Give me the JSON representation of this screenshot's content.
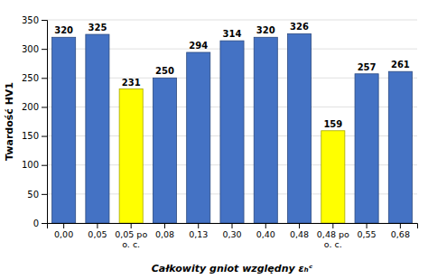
{
  "chart_data": {
    "type": "bar",
    "categories": [
      "0,00",
      "0,05",
      "0,05 po\no. c.",
      "0,08",
      "0,13",
      "0,30",
      "0,40",
      "0,48",
      "0,48 po\no. c.",
      "0,55",
      "0,68"
    ],
    "values": [
      320,
      325,
      231,
      250,
      294,
      314,
      320,
      326,
      159,
      257,
      261
    ],
    "colors": [
      "#4472C4",
      "#4472C4",
      "#FFFF00",
      "#4472C4",
      "#4472C4",
      "#4472C4",
      "#4472C4",
      "#4472C4",
      "#FFFF00",
      "#4472C4",
      "#4472C4"
    ],
    "ylabel": "Twardоść HV1",
    "xlabel": "Całkowity gniot względny εₕᶜ",
    "ylim": [
      0,
      350
    ],
    "yticks": [
      0,
      50,
      100,
      150,
      200,
      250,
      300,
      350
    ],
    "grid": true,
    "data_labels": true
  }
}
